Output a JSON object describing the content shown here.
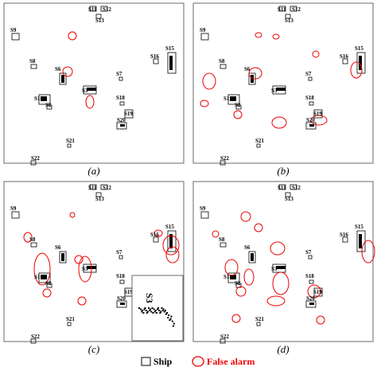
{
  "panels": [
    {
      "caption": "(a)",
      "labels": [
        "S11",
        "S12",
        "S13",
        "S9",
        "S8",
        "S6",
        "S7",
        "S3",
        "S1",
        "S2",
        "S16",
        "S15",
        "S18",
        "S19",
        "S20",
        "S21",
        "S22"
      ]
    },
    {
      "caption": "(b)",
      "labels": [
        "S11",
        "S12",
        "S13",
        "S9",
        "S8",
        "S6",
        "S7",
        "S3",
        "S1",
        "S2",
        "S16",
        "S15",
        "S18",
        "S19",
        "S20",
        "S21",
        "S22"
      ]
    },
    {
      "caption": "(c)",
      "labels": [
        "S11",
        "S12",
        "S13",
        "S9",
        "S8",
        "S6",
        "S7",
        "S3",
        "S1",
        "S2",
        "S16",
        "S15",
        "S18",
        "S19",
        "S20",
        "S21",
        "S22"
      ],
      "inset_label": "S3"
    },
    {
      "caption": "(d)",
      "labels": [
        "S11",
        "S12",
        "S13",
        "S9",
        "S8",
        "S6",
        "S7",
        "S3",
        "S1",
        "S2",
        "S16",
        "S15",
        "S18",
        "S19",
        "S20",
        "S21",
        "S22"
      ]
    }
  ],
  "legend": {
    "ship": "Ship",
    "false_alarm": "False alarm"
  }
}
